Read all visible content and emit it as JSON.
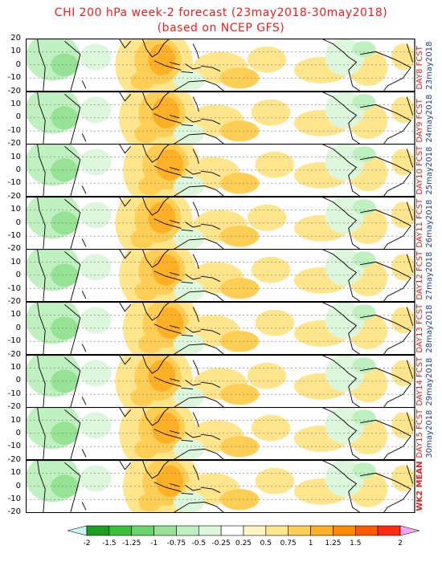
{
  "title": {
    "line1": "CHI 200 hPa week-2 forecast (23may2018-30may2018)",
    "line2": "(based on NCEP GFS)"
  },
  "y_ticks": [
    "20",
    "10",
    "0",
    "-10",
    "-20"
  ],
  "panels": [
    {
      "label": "DAY8 FCST",
      "date": "23may2018"
    },
    {
      "label": "DAY9 FCST",
      "date": "24may2018"
    },
    {
      "label": "DAY10 FCST",
      "date": "25may2018"
    },
    {
      "label": "DAY11 FCST",
      "date": "26may2018"
    },
    {
      "label": "DAY12 FCST",
      "date": "27may2018"
    },
    {
      "label": "DAY13 FCST",
      "date": "28may2018"
    },
    {
      "label": "DAY14 FCST",
      "date": "29may2018"
    },
    {
      "label": "DAY15 FCST",
      "date": "30may2018"
    },
    {
      "label": "WK2 MEAN",
      "date": ""
    }
  ],
  "colorbar": {
    "labels": [
      "-2",
      "-1.5",
      "-1.25",
      "-1",
      "-0.75",
      "-0.5",
      "-0.25",
      "0.25",
      "0.5",
      "0.75",
      "1",
      "1.25",
      "1.5",
      "2"
    ],
    "colors": [
      "#1e9e1e",
      "#3cbf3c",
      "#6ad46a",
      "#96e396",
      "#bff0bf",
      "#dcf7dc",
      "#ffffff",
      "#fff6c4",
      "#ffe58c",
      "#ffcf55",
      "#ffb025",
      "#ff8a00",
      "#ff5a00",
      "#ff2a10"
    ],
    "below_color": "#c6f7f7",
    "above_color": "#f5a6f5"
  }
}
